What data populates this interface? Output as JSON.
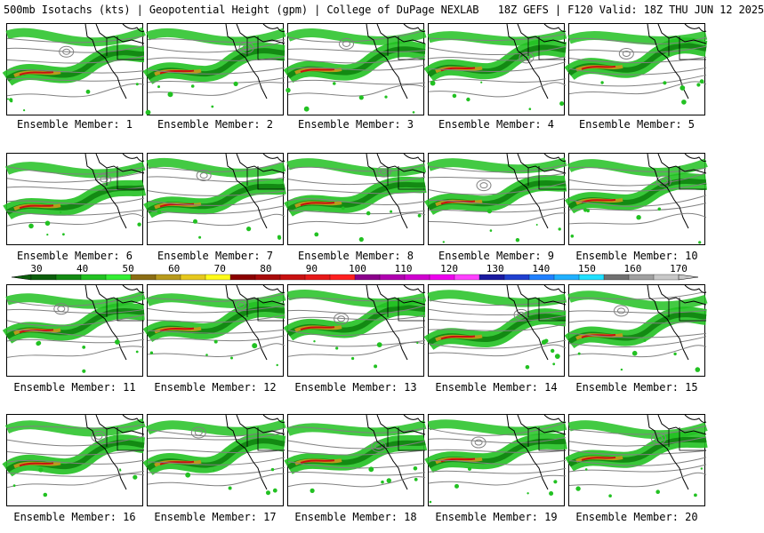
{
  "title": "500mb Isotachs (kts) | Geopotential Height (gpm) | College of DuPage NEXLAB   18Z GEFS | F120 Valid: 18Z THU JUN 12 2025",
  "panels": [
    "Ensemble Member: 1",
    "Ensemble Member: 2",
    "Ensemble Member: 3",
    "Ensemble Member: 4",
    "Ensemble Member: 5",
    "Ensemble Member: 6",
    "Ensemble Member: 7",
    "Ensemble Member: 8",
    "Ensemble Member: 9",
    "Ensemble Member: 10",
    "Ensemble Member: 11",
    "Ensemble Member: 12",
    "Ensemble Member: 13",
    "Ensemble Member: 14",
    "Ensemble Member: 15",
    "Ensemble Member: 16",
    "Ensemble Member: 17",
    "Ensemble Member: 18",
    "Ensemble Member: 19",
    "Ensemble Member: 20"
  ],
  "colorbar": {
    "labels": [
      "30",
      "40",
      "50",
      "60",
      "70",
      "80",
      "90",
      "100",
      "110",
      "120",
      "130",
      "140",
      "150",
      "160",
      "170"
    ],
    "colors": [
      "#0b5d0b",
      "#138a13",
      "#22c122",
      "#33ee33",
      "#8b6d14",
      "#b89a1c",
      "#e6c81e",
      "#fffb1a",
      "#8b0000",
      "#a80a0a",
      "#c81010",
      "#e61818",
      "#ff2020",
      "#8b008b",
      "#b000b0",
      "#d000d0",
      "#ee00ee",
      "#ff40ff",
      "#1a1aa0",
      "#2040d0",
      "#2080ff",
      "#20b0ff",
      "#20e0ff",
      "#707070",
      "#a0a0a0",
      "#c8c8c8"
    ]
  }
}
